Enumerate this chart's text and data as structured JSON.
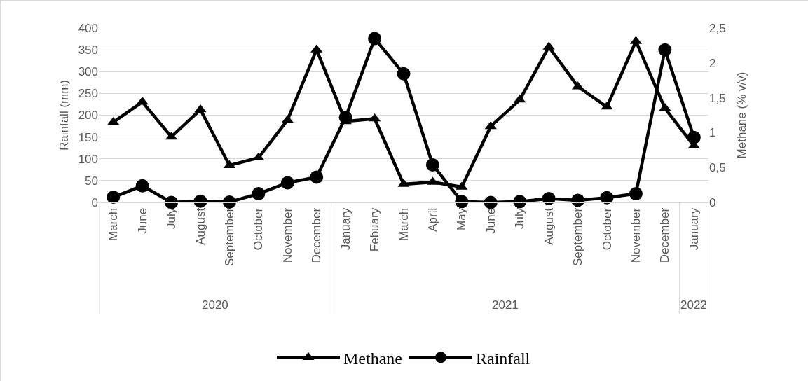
{
  "chart_data": {
    "type": "line",
    "ylabel": "Rainfall (mm)",
    "y2label": "Methane (% v/v)",
    "categories": [
      "March",
      "June",
      "July",
      "August",
      "September",
      "October",
      "November",
      "December",
      "January",
      "Febuary",
      "March",
      "April",
      "May",
      "June",
      "July",
      "August",
      "September",
      "October",
      "November",
      "December",
      "January"
    ],
    "series": [
      {
        "name": "Methane",
        "color": "#000000",
        "marker": "triangle",
        "axis": "y2",
        "values": [
          1.15,
          1.44,
          0.94,
          1.33,
          0.53,
          0.64,
          1.18,
          2.19,
          1.16,
          1.2,
          0.26,
          0.29,
          0.22,
          1.09,
          1.47,
          2.23,
          1.66,
          1.37,
          2.31,
          1.35,
          0.81
        ]
      },
      {
        "name": "Rainfall",
        "color": "#000000",
        "marker": "circle",
        "values": [
          12,
          38,
          0,
          3,
          1,
          20,
          45,
          58,
          195,
          376,
          295,
          86,
          2,
          0,
          2,
          9,
          5,
          11,
          20,
          350,
          149
        ]
      }
    ],
    "annotations": [
      "2020",
      "2021",
      "2022"
    ],
    "ylim": [
      0,
      400
    ],
    "yticks": [
      0,
      50,
      100,
      150,
      200,
      250,
      300,
      350,
      400
    ],
    "y2lim": [
      0,
      2.5
    ],
    "y2ticks": [
      0,
      {
        "value": 0.5,
        "label": "0,5"
      },
      1,
      {
        "value": 1.5,
        "label": "1,5"
      },
      2,
      {
        "value": 2.5,
        "label": "2,5"
      }
    ],
    "grid": "y",
    "legend": "bottom",
    "line_style": "solid"
  }
}
